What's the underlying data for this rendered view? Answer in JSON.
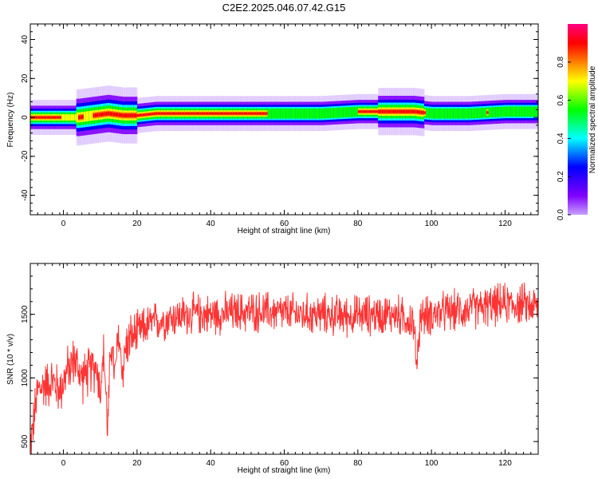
{
  "chart_data": [
    {
      "type": "heatmap",
      "title": "C2E2.2025.046.07.42.G15",
      "xlabel": "Height of straight line (km)",
      "ylabel": "Frequency (Hz)",
      "xlim": [
        -9,
        129
      ],
      "ylim": [
        -50,
        48
      ],
      "x_ticks": [
        0,
        20,
        40,
        60,
        80,
        100,
        120
      ],
      "y_ticks": [
        -40,
        -20,
        0,
        20,
        40
      ],
      "colorbar": {
        "label": "Normalized spectral amplitude",
        "range": [
          0,
          1
        ],
        "ticks": [
          "0.0",
          "0.2",
          "0.4",
          "0.6",
          "0.8"
        ],
        "tick_values": [
          0.0,
          0.2,
          0.4,
          0.6,
          0.8
        ]
      },
      "ridge": {
        "x": [
          -8,
          -4,
          0,
          4,
          8,
          12,
          16,
          20,
          25,
          30,
          40,
          50,
          60,
          70,
          80,
          90,
          95,
          100,
          105,
          110,
          120,
          128
        ],
        "freq": [
          0,
          0,
          0,
          0,
          1,
          2,
          1,
          1,
          2,
          2,
          2,
          2,
          2,
          2,
          3,
          3,
          3,
          2,
          2,
          2,
          3,
          3
        ]
      },
      "colors": {
        "colormap": [
          "#c8a0ff",
          "#8000ff",
          "#0000ff",
          "#00ffff",
          "#00ff00",
          "#ffff00",
          "#ff8000",
          "#ff0000",
          "#ff0080"
        ]
      }
    },
    {
      "type": "line",
      "xlabel": "Height of straight line (km)",
      "ylabel": "SNR (10 * v/v)",
      "xlim": [
        -9,
        129
      ],
      "ylim": [
        400,
        1900
      ],
      "x_ticks": [
        0,
        20,
        40,
        60,
        80,
        100,
        120
      ],
      "y_ticks": [
        500,
        1000,
        1500
      ],
      "series": [
        {
          "x": [
            -9,
            -7,
            -5,
            -3,
            -1,
            1,
            3,
            5,
            7,
            9,
            10,
            11,
            12,
            13,
            14,
            15,
            16,
            17,
            18,
            20,
            22,
            24,
            26,
            30,
            35,
            40,
            45,
            50,
            55,
            60,
            65,
            70,
            75,
            80,
            85,
            90,
            95,
            96,
            97,
            98,
            100,
            105,
            110,
            115,
            120,
            125,
            129
          ],
          "values": [
            450,
            900,
            950,
            980,
            900,
            1050,
            1150,
            1000,
            1050,
            1100,
            900,
            1200,
            600,
            1300,
            1000,
            1350,
            1050,
            1250,
            1300,
            1350,
            1400,
            1430,
            1450,
            1480,
            1500,
            1500,
            1510,
            1520,
            1520,
            1510,
            1500,
            1500,
            1490,
            1490,
            1500,
            1500,
            1450,
            1100,
            1500,
            1480,
            1500,
            1520,
            1540,
            1560,
            1580,
            1580,
            1560
          ],
          "color": "#ff3333"
        }
      ]
    }
  ]
}
